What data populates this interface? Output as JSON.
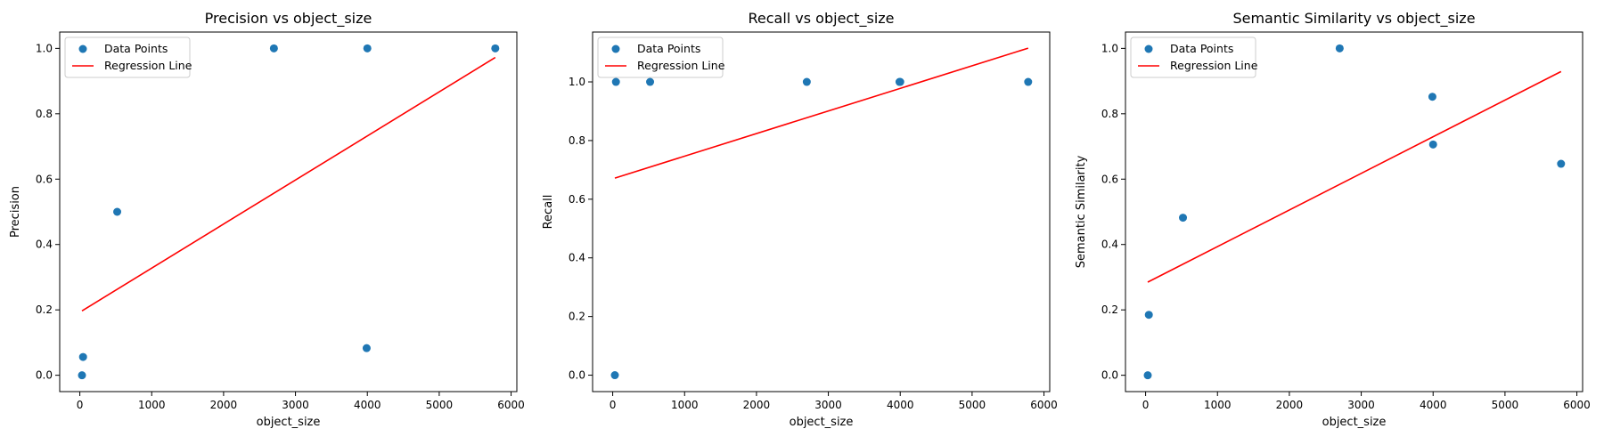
{
  "chart_data": [
    {
      "type": "scatter",
      "title": "Precision vs object_size",
      "xlabel": "object_size",
      "ylabel": "Precision",
      "xlim": [
        -280,
        6080
      ],
      "ylim": [
        -0.05,
        1.05
      ],
      "xticks": [
        0,
        1000,
        2000,
        3000,
        4000,
        5000,
        6000
      ],
      "yticks": [
        0.0,
        0.2,
        0.4,
        0.6,
        0.8,
        1.0
      ],
      "xtick_labels": [
        "0",
        "1000",
        "2000",
        "3000",
        "4000",
        "5000",
        "6000"
      ],
      "ytick_labels": [
        "0.0",
        "0.2",
        "0.4",
        "0.6",
        "0.8",
        "1.0"
      ],
      "legend_position": "top-left",
      "grid": false,
      "series": [
        {
          "name": "Data Points",
          "kind": "scatter",
          "color": "#1f77b4",
          "points": [
            [
              30,
              0.0
            ],
            [
              45,
              0.056
            ],
            [
              520,
              0.5
            ],
            [
              2700,
              1.0
            ],
            [
              3990,
              0.083
            ],
            [
              4000,
              1.0
            ],
            [
              5780,
              1.0
            ]
          ]
        },
        {
          "name": "Regression Line",
          "kind": "line",
          "color": "#ff0000",
          "points": [
            [
              30,
              0.197
            ],
            [
              5780,
              0.972
            ]
          ]
        }
      ]
    },
    {
      "type": "scatter",
      "title": "Recall vs object_size",
      "xlabel": "object_size",
      "ylabel": "Recall",
      "xlim": [
        -280,
        6080
      ],
      "ylim": [
        -0.056,
        1.17
      ],
      "xticks": [
        0,
        1000,
        2000,
        3000,
        4000,
        5000,
        6000
      ],
      "yticks": [
        0.0,
        0.2,
        0.4,
        0.6,
        0.8,
        1.0
      ],
      "xtick_labels": [
        "0",
        "1000",
        "2000",
        "3000",
        "4000",
        "5000",
        "6000"
      ],
      "ytick_labels": [
        "0.0",
        "0.2",
        "0.4",
        "0.6",
        "0.8",
        "1.0"
      ],
      "legend_position": "top-left",
      "grid": false,
      "series": [
        {
          "name": "Data Points",
          "kind": "scatter",
          "color": "#1f77b4",
          "points": [
            [
              30,
              0.0
            ],
            [
              45,
              1.0
            ],
            [
              520,
              1.0
            ],
            [
              2700,
              1.0
            ],
            [
              3990,
              1.0
            ],
            [
              4000,
              1.0
            ],
            [
              5780,
              1.0
            ]
          ]
        },
        {
          "name": "Regression Line",
          "kind": "line",
          "color": "#ff0000",
          "points": [
            [
              30,
              0.672
            ],
            [
              5780,
              1.115
            ]
          ]
        }
      ]
    },
    {
      "type": "scatter",
      "title": "Semantic Similarity vs object_size",
      "xlabel": "object_size",
      "ylabel": "Semantic Similarity",
      "xlim": [
        -280,
        6080
      ],
      "ylim": [
        -0.05,
        1.05
      ],
      "xticks": [
        0,
        1000,
        2000,
        3000,
        4000,
        5000,
        6000
      ],
      "yticks": [
        0.0,
        0.2,
        0.4,
        0.6,
        0.8,
        1.0
      ],
      "xtick_labels": [
        "0",
        "1000",
        "2000",
        "3000",
        "4000",
        "5000",
        "6000"
      ],
      "ytick_labels": [
        "0.0",
        "0.2",
        "0.4",
        "0.6",
        "0.8",
        "1.0"
      ],
      "legend_position": "top-left",
      "grid": false,
      "series": [
        {
          "name": "Data Points",
          "kind": "scatter",
          "color": "#1f77b4",
          "points": [
            [
              30,
              0.0
            ],
            [
              45,
              0.185
            ],
            [
              520,
              0.482
            ],
            [
              2700,
              1.0
            ],
            [
              3990,
              0.852
            ],
            [
              4000,
              0.706
            ],
            [
              5780,
              0.647
            ]
          ]
        },
        {
          "name": "Regression Line",
          "kind": "line",
          "color": "#ff0000",
          "points": [
            [
              30,
              0.285
            ],
            [
              5780,
              0.929
            ]
          ]
        }
      ]
    }
  ]
}
